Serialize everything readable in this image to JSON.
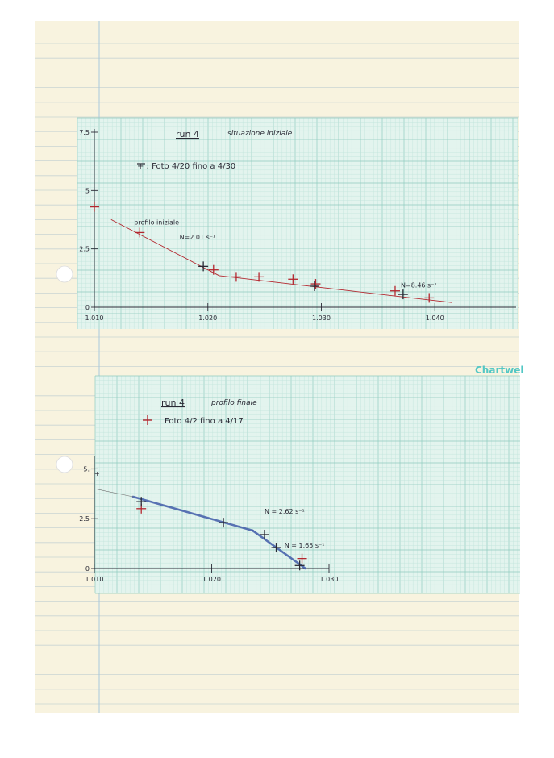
{
  "brand_label": "Chartwel",
  "colors": {
    "paper": "#f8f3df",
    "ruled_line": "#c9d4d3",
    "margin_line": "#a9c8dc",
    "grid_minor": "#bfe3da",
    "grid_major": "#8fcbbf",
    "grid_bg": "#e3f4ee",
    "ink_red": "#b3262e",
    "ink_black": "#2a2a35",
    "ink_blue": "#3f5aa8",
    "ink_pencil": "#6b6b6b",
    "brand": "#52c7c4"
  },
  "chart_data": [
    {
      "type": "scatter",
      "title": "run 4",
      "subtitle": "situazione iniziale",
      "legend_text": "+ : Foto 4/20 fino a 4/30",
      "xlim": [
        1.01,
        1.05
      ],
      "ylim": [
        0,
        7.5
      ],
      "x_ticks": [
        {
          "value": 1.01,
          "label": "1.010"
        },
        {
          "value": 1.02,
          "label": "1.020"
        },
        {
          "value": 1.03,
          "label": "1.030"
        },
        {
          "value": 1.04,
          "label": "1.040"
        }
      ],
      "y_ticks": [
        {
          "value": 0,
          "label": "0"
        },
        {
          "value": 2.5,
          "label": "2.5"
        },
        {
          "value": 5,
          "label": "5"
        },
        {
          "value": 7.5,
          "label": "7.5"
        }
      ],
      "series": [
        {
          "color": "red",
          "points": [
            [
              1.01,
              4.3
            ],
            [
              1.014,
              3.2
            ],
            [
              1.0205,
              1.6
            ],
            [
              1.0225,
              1.3
            ],
            [
              1.0245,
              1.3
            ],
            [
              1.0275,
              1.2
            ],
            [
              1.0295,
              1.0
            ],
            [
              1.0365,
              0.7
            ],
            [
              1.0395,
              0.4
            ]
          ]
        },
        {
          "color": "black",
          "points": [
            [
              1.0196,
              1.75
            ],
            [
              1.0294,
              0.9
            ],
            [
              1.0372,
              0.55
            ]
          ]
        }
      ],
      "fit_lines": [
        {
          "color": "red",
          "points": [
            [
              1.0115,
              3.75
            ],
            [
              1.021,
              1.35
            ]
          ],
          "label": "N=2.01 s⁻¹",
          "label_at": [
            1.0175,
            2.9
          ]
        },
        {
          "color": "red",
          "points": [
            [
              1.021,
              1.35
            ],
            [
              1.0415,
              0.2
            ]
          ],
          "label": "N=8.46 s⁻¹",
          "label_at": [
            1.037,
            0.85
          ]
        }
      ],
      "annotations": [
        {
          "text": "profilo iniziale",
          "at": [
            1.0135,
            3.55
          ]
        }
      ]
    },
    {
      "type": "scatter",
      "title": "run 4",
      "subtitle": "profilo finale",
      "legend_text": "Foto 4/2 fino a 4/17",
      "xlim": [
        1.01,
        1.03
      ],
      "ylim": [
        0,
        5.5
      ],
      "x_ticks": [
        {
          "value": 1.01,
          "label": "1.010"
        },
        {
          "value": 1.02,
          "label": "1.020"
        },
        {
          "value": 1.03,
          "label": "1.030"
        }
      ],
      "y_ticks": [
        {
          "value": 0,
          "label": "0"
        },
        {
          "value": 2.5,
          "label": "2.5"
        },
        {
          "value": 5,
          "label": "5."
        }
      ],
      "series": [
        {
          "color": "red",
          "points": [
            [
              1.014,
              3.0
            ],
            [
              1.0277,
              0.5
            ]
          ]
        },
        {
          "color": "black",
          "points": [
            [
              1.014,
              3.35
            ],
            [
              1.021,
              2.3
            ],
            [
              1.0245,
              1.7
            ],
            [
              1.0255,
              1.05
            ],
            [
              1.0275,
              0.15
            ]
          ]
        }
      ],
      "fit_lines": [
        {
          "color": "blue",
          "points": [
            [
              1.0133,
              3.6
            ],
            [
              1.0235,
              1.9
            ]
          ],
          "label": "N = 2.62 s⁻¹",
          "label_at": [
            1.0245,
            2.75
          ]
        },
        {
          "color": "blue",
          "points": [
            [
              1.0235,
              1.9
            ],
            [
              1.028,
              0.0
            ]
          ],
          "label": "N = 1.65 s⁻¹",
          "label_at": [
            1.0262,
            1.05
          ]
        },
        {
          "color": "pencil",
          "points": [
            [
              1.01,
              4.0
            ],
            [
              1.0133,
              3.6
            ]
          ]
        }
      ],
      "annotations": [
        {
          "text": "+",
          "at": [
            1.01,
            4.65
          ]
        }
      ]
    }
  ]
}
